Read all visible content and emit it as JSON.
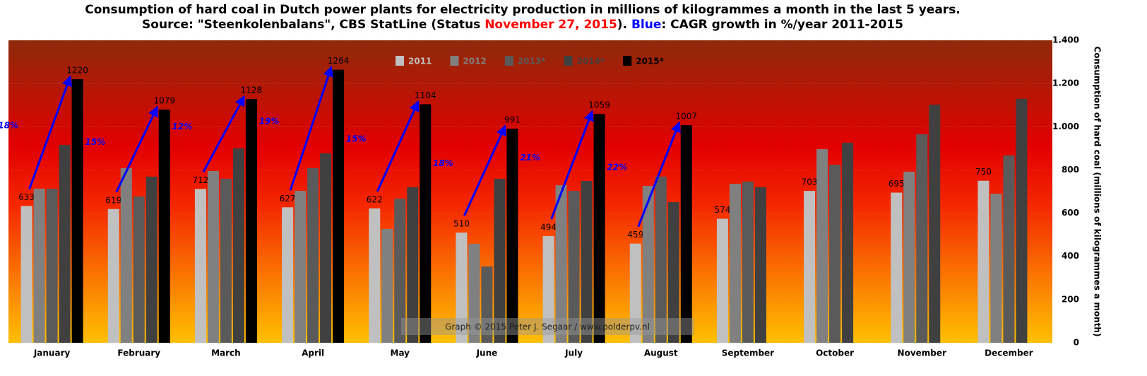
{
  "chart_data": {
    "type": "bar",
    "title": "Consumption of hard coal in Dutch power plants for  electricity production in millions of kilogrammes a month in the last 5 years.",
    "subtitle_parts": [
      {
        "text": "Source: \"Steenkolenbalans\", CBS StatLine (Status ",
        "color": "#000000"
      },
      {
        "text": "November 27, 2015",
        "color": "#ff0000"
      },
      {
        "text": "). ",
        "color": "#000000"
      },
      {
        "text": "Blue",
        "color": "#0000ff"
      },
      {
        "text": ": CAGR growth in %/year 2011-2015",
        "color": "#000000"
      }
    ],
    "y_label": "Consumption  of hard coal (millions of kilogrammes a month)",
    "y_axis_position": "right",
    "watermark": "Graph © 2015 Peter J. Segaar / www.polderpv.nl",
    "categories": [
      "January",
      "February",
      "March",
      "April",
      "May",
      "June",
      "July",
      "August",
      "September",
      "October",
      "November",
      "December"
    ],
    "series": [
      {
        "name": "2011",
        "color": "#c0c0c0",
        "values": [
          633,
          619,
          712,
          627,
          622,
          510,
          494,
          459,
          574,
          703,
          695,
          750
        ]
      },
      {
        "name": "2012",
        "color": "#808080",
        "values": [
          713,
          808,
          795,
          703,
          527,
          458,
          729,
          726,
          736,
          896,
          792,
          690
        ]
      },
      {
        "name": "2013*",
        "color": "#5a5a5a",
        "values": [
          713,
          677,
          759,
          808,
          667,
          353,
          703,
          769,
          746,
          824,
          965,
          867
        ]
      },
      {
        "name": "2014*",
        "color": "#404040",
        "values": [
          916,
          769,
          900,
          877,
          720,
          759,
          749,
          651,
          720,
          926,
          1102,
          1129
        ]
      },
      {
        "name": "2015*",
        "color": "#000000",
        "values": [
          1220,
          1079,
          1128,
          1264,
          1104,
          991,
          1059,
          1007,
          null,
          null,
          null,
          null
        ]
      }
    ],
    "labeled_series": [
      0,
      4
    ],
    "cagr_labels": [
      "18%",
      "15%",
      "12%",
      "19%",
      "15%",
      "18%",
      "21%",
      "22%"
    ],
    "cagr_color": "#0000ff",
    "ylim": [
      0,
      1400
    ],
    "yticks": [
      0,
      200,
      400,
      600,
      800,
      {
        "value": 1000,
        "label": "1.000"
      },
      {
        "value": 1200,
        "label": "1.200"
      },
      {
        "value": 1400,
        "label": "1.400"
      }
    ],
    "grid": true
  }
}
